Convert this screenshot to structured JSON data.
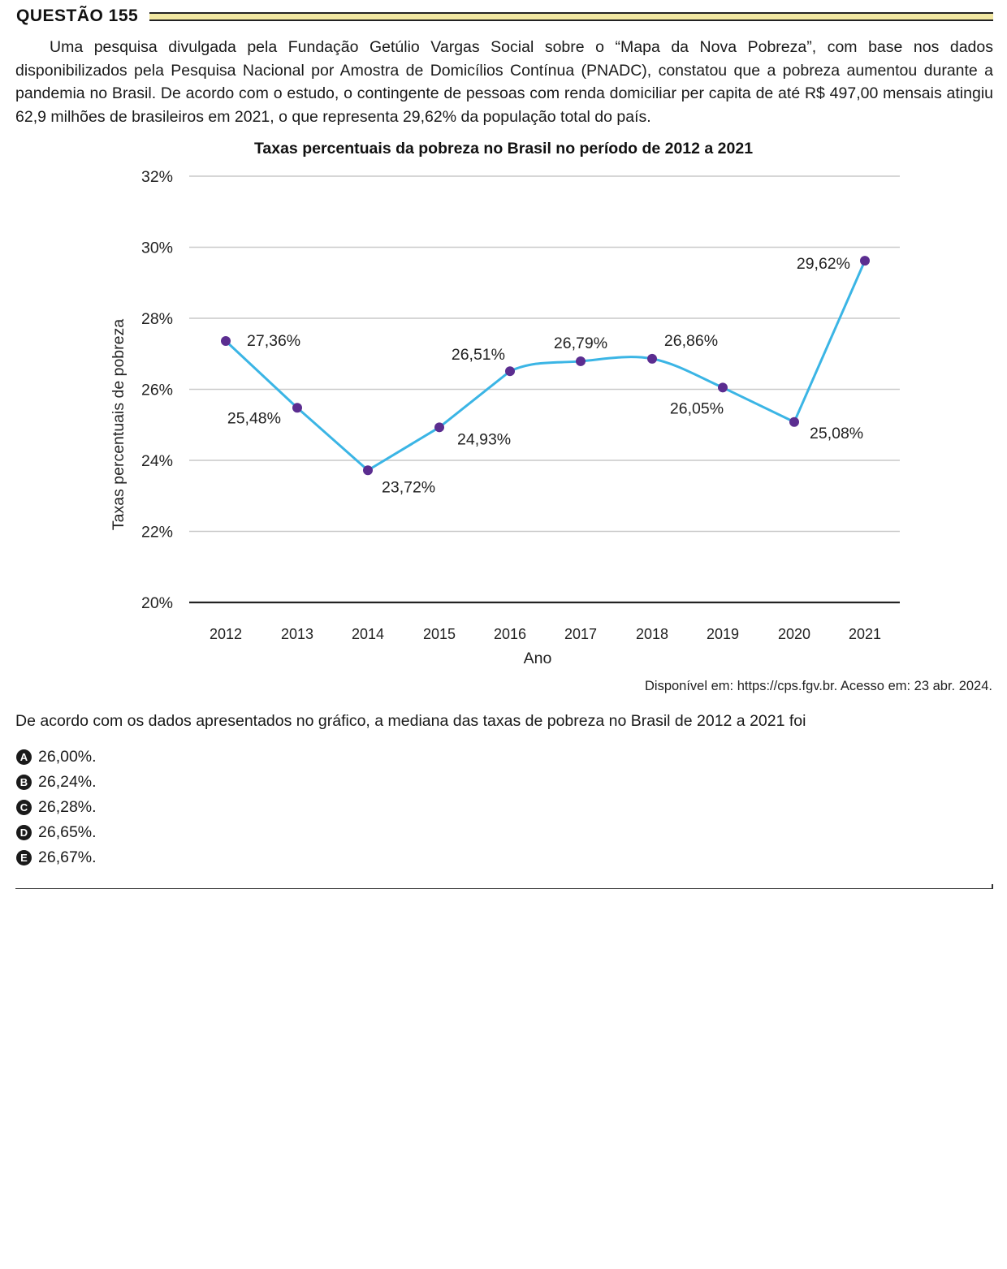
{
  "question": {
    "title": "QUESTÃO 155",
    "intro": "Uma pesquisa divulgada pela Fundação Getúlio Vargas Social sobre o “Mapa da Nova Pobreza”, com base nos dados disponibilizados pela Pesquisa Nacional por Amostra de Domicílios Contínua (PNADC), constatou que a pobreza aumentou durante a pandemia no Brasil. De acordo com o estudo, o contingente de pessoas com renda domiciliar per capita de até R$ 497,00 mensais atingiu 62,9 milhões de brasileiros em 2021, o que representa 29,62% da população total do país.",
    "source": "Disponível em: https://cps.fgv.br. Acesso em: 23 abr. 2024.",
    "prompt": "De acordo com os dados apresentados no gráfico, a mediana das taxas de pobreza no Brasil de 2012 a 2021 foi",
    "options": [
      {
        "letter": "A",
        "text": "26,00%."
      },
      {
        "letter": "B",
        "text": "26,24%."
      },
      {
        "letter": "C",
        "text": "26,28%."
      },
      {
        "letter": "D",
        "text": "26,65%."
      },
      {
        "letter": "E",
        "text": "26,67%."
      }
    ]
  },
  "chart_data": {
    "type": "line",
    "title": "Taxas percentuais da pobreza no Brasil no período de 2012 a 2021",
    "xlabel": "Ano",
    "ylabel": "Taxas percentuais de pobreza",
    "x": [
      "2012",
      "2013",
      "2014",
      "2015",
      "2016",
      "2017",
      "2018",
      "2019",
      "2020",
      "2021"
    ],
    "values": [
      27.36,
      25.48,
      23.72,
      24.93,
      26.51,
      26.79,
      26.86,
      26.05,
      25.08,
      29.62
    ],
    "data_labels": [
      "27,36%",
      "25,48%",
      "23,72%",
      "24,93%",
      "26,51%",
      "26,79%",
      "26,86%",
      "26,05%",
      "25,08%",
      "29,62%"
    ],
    "ylim": [
      20,
      32
    ],
    "yticks": [
      20,
      22,
      24,
      26,
      28,
      30,
      32
    ],
    "ytick_labels": [
      "20%",
      "22%",
      "24%",
      "26%",
      "28%",
      "30%",
      "32%"
    ],
    "grid": true,
    "smooth": true,
    "colors": {
      "line": "#3bb5e5",
      "marker": "#5b2d90",
      "grid": "#c9c9c9",
      "baseline": "#222222"
    }
  }
}
